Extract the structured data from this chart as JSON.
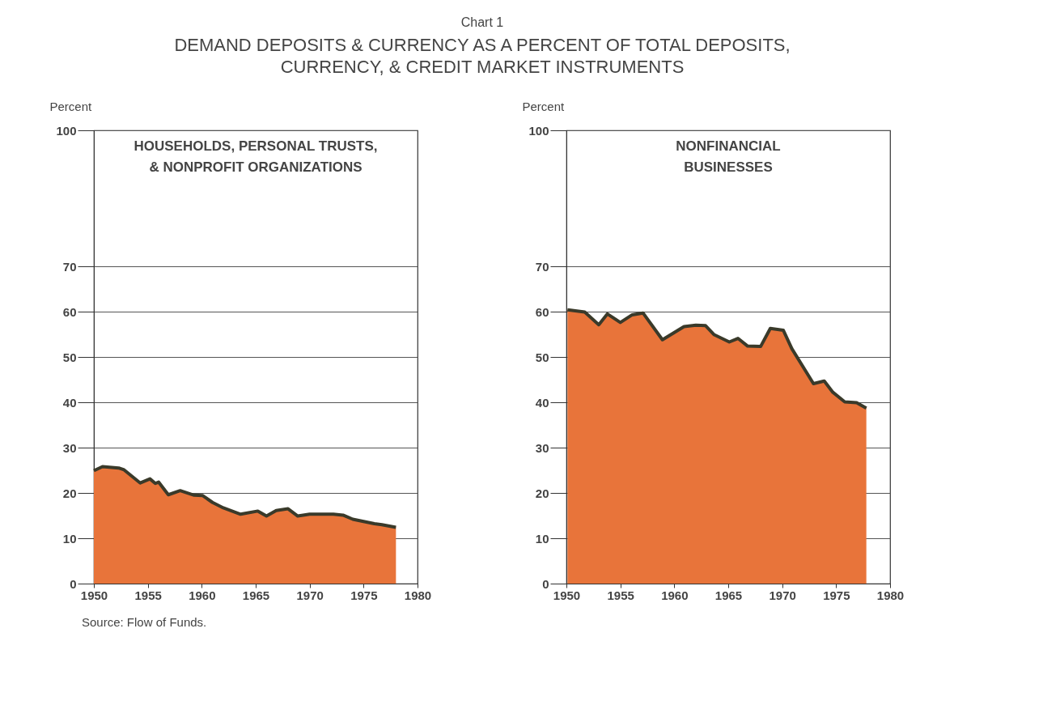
{
  "chart_data": [
    {
      "type": "area",
      "title": "DEMAND DEPOSITS & CURRENCY AS A PERCENT OF TOTAL DEPOSITS,\nCURRENCY, & CREDIT MARKET INSTRUMENTS",
      "subtitle": "HOUSEHOLDS, PERSONAL TRUSTS,\n& NONPROFIT ORGANIZATIONS",
      "ylabel": "Percent",
      "annotations": [
        "Chart 1",
        "Source: Flow of Funds."
      ],
      "x": [
        1950,
        1950.8,
        1952.3,
        1952.8,
        1954.3,
        1955.2,
        1955.7,
        1956,
        1956.9,
        1958,
        1959.3,
        1960.1,
        1961,
        1962,
        1963.6,
        1965.2,
        1966,
        1966.9,
        1968,
        1968.9,
        1970,
        1972.2,
        1973.1,
        1974,
        1976,
        1976.7,
        1978
      ],
      "series": [
        {
          "color": "#e8743a",
          "values": [
            24.9,
            25.8,
            25.5,
            25.1,
            22.2,
            23.1,
            22.1,
            22.4,
            19.6,
            20.5,
            19.5,
            19.4,
            17.9,
            16.7,
            15.3,
            16.0,
            14.9,
            16.1,
            16.5,
            14.9,
            15.3,
            15.3,
            15.1,
            14.2,
            13.2,
            13.0,
            12.4
          ]
        }
      ],
      "xlim": [
        1950,
        1980
      ],
      "xticks": [
        1950,
        1955,
        1960,
        1965,
        1970,
        1975,
        1980
      ],
      "ylim": [
        0,
        100
      ],
      "yticks": [
        0,
        10,
        20,
        30,
        40,
        50,
        60,
        70,
        100
      ],
      "grid": "y"
    },
    {
      "type": "area",
      "subtitle": "NONFINANCIAL\nBUSINESSES",
      "ylabel": "Percent",
      "x": [
        1950.1,
        1951.7,
        1953,
        1953.8,
        1955,
        1956.1,
        1957.1,
        1958.9,
        1960.9,
        1962,
        1962.9,
        1963.7,
        1965.1,
        1965.9,
        1966.8,
        1968,
        1968.9,
        1970.1,
        1970.9,
        1972.9,
        1973.9,
        1974.7,
        1975.8,
        1976.9,
        1977.8
      ],
      "series": [
        {
          "color": "#e8743a",
          "values": [
            60.4,
            59.9,
            57.1,
            59.5,
            57.6,
            59.3,
            59.7,
            53.8,
            56.7,
            57.0,
            56.9,
            54.9,
            53.3,
            54.1,
            52.4,
            52.3,
            56.3,
            55.9,
            51.8,
            44.1,
            44.7,
            42.2,
            40.1,
            39.9,
            38.7
          ]
        }
      ],
      "xlim": [
        1950,
        1980
      ],
      "xticks": [
        1950,
        1955,
        1960,
        1965,
        1970,
        1975,
        1980
      ],
      "ylim": [
        0,
        100
      ],
      "yticks": [
        0,
        10,
        20,
        30,
        40,
        50,
        60,
        70,
        100
      ],
      "grid": "y"
    }
  ]
}
